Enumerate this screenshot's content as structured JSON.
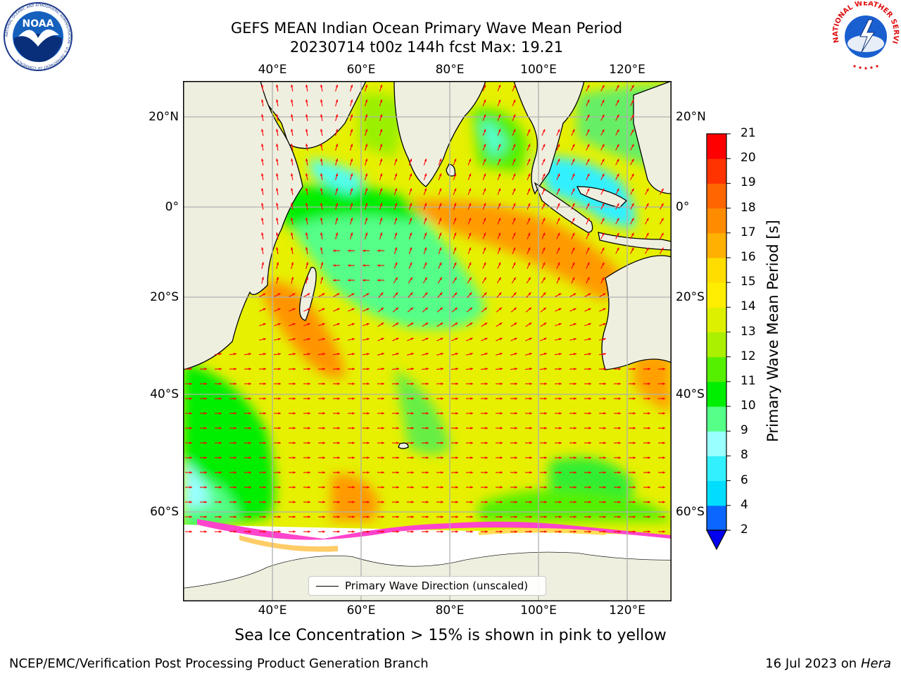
{
  "title": {
    "line1": "GEFS MEAN Indian Ocean Primary Wave Mean Period",
    "line2": "20230714 t00z 144h fcst   Max: 19.21"
  },
  "logos": {
    "noaa": {
      "text": "NOAA",
      "ring_text": "NATIONAL OCEANIC AND ATMOSPHERIC ADMINISTRATION · U.S. DEPARTMENT OF COMMERCE"
    },
    "nws": {
      "ring_text": "NATIONAL WEATHER SERVICE"
    }
  },
  "map": {
    "lon_labels": [
      "40°E",
      "60°E",
      "80°E",
      "100°E",
      "120°E"
    ],
    "lat_labels": [
      "20°N",
      "0°",
      "20°S",
      "40°S",
      "60°S"
    ],
    "land_color": "#efefe0",
    "ice_region_color": "#ffffff",
    "arrow_color": "#ff0000",
    "grid_color": "#b0b0b0"
  },
  "legend": {
    "label": "Primary Wave Direction (unscaled)"
  },
  "colorbar": {
    "label": "Primary Wave Mean Period [s]",
    "ticks": [
      "2",
      "4",
      "6",
      "8",
      "9",
      "10",
      "11",
      "12",
      "13",
      "14",
      "15",
      "16",
      "17",
      "18",
      "19",
      "20",
      "21"
    ],
    "colors": [
      "#0a66ff",
      "#00ddff",
      "#33f0ff",
      "#99ffff",
      "#55ff88",
      "#00ee00",
      "#55f000",
      "#aaf000",
      "#ddf000",
      "#ffee00",
      "#ffdd00",
      "#ffb000",
      "#ff8c00",
      "#ff6600",
      "#ff3300",
      "#ff0000"
    ],
    "extend_min_color": "#0000ee"
  },
  "caption": "Sea Ice Concentration > 15% is shown in pink to yellow",
  "footer": {
    "left": "NCEP/EMC/Verification Post Processing Product Generation Branch",
    "right_date": "16 Jul 2023 on",
    "right_machine": "Hera"
  }
}
